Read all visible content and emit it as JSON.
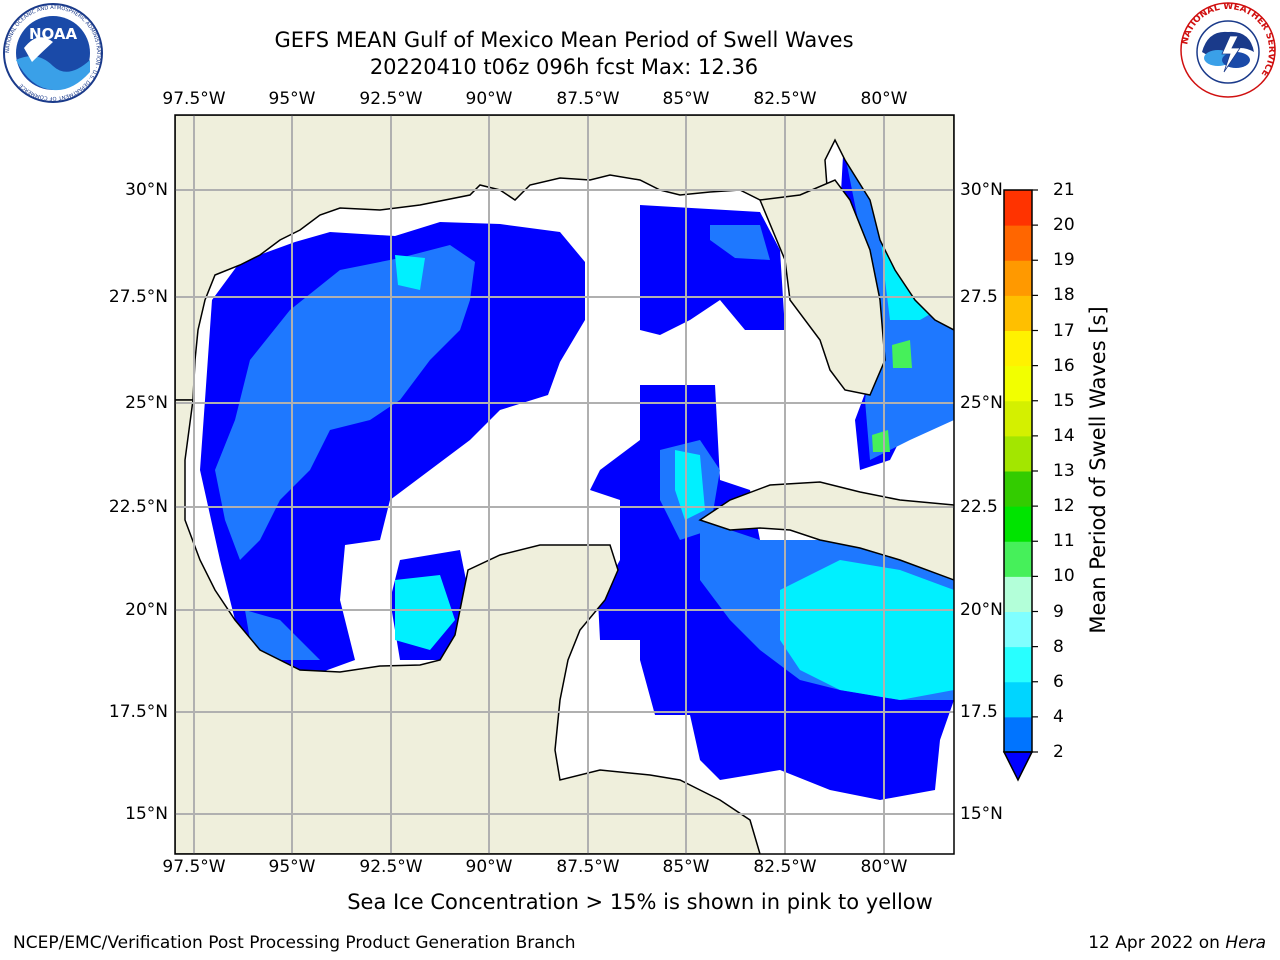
{
  "header": {
    "title": "GEFS MEAN Gulf of Mexico Mean Period of Swell Waves",
    "subtitle": "20220410 t06z 096h fcst   Max: 12.36"
  },
  "logos": {
    "noaa_text": "NOAA",
    "noaa_ring_text": "NATIONAL OCEANIC AND ATMOSPHERIC ADMINISTRATION · U.S. DEPARTMENT OF COMMERCE",
    "nws_ring_text": "NATIONAL WEATHER SERVICE"
  },
  "map": {
    "lon_ticks": [
      "97.5°W",
      "95°W",
      "92.5°W",
      "90°W",
      "87.5°W",
      "85°W",
      "82.5°W",
      "80°W"
    ],
    "lat_ticks_left": [
      "30°N",
      "27.5°N",
      "25°N",
      "22.5°N",
      "20°N",
      "17.5°N",
      "15°N"
    ],
    "lat_ticks_right": [
      "30°N",
      "27.5",
      "25°N",
      "22.5",
      "20°N",
      "17.5",
      "15°N"
    ],
    "extent": {
      "lon_min": -98.0,
      "lon_max": -78.3,
      "lat_min": 14.0,
      "lat_max": 31.7
    },
    "colors": {
      "land": "#efefdc",
      "ocean_low": "#0000ff",
      "ocean_mid": "#1e78ff",
      "ocean_high": "#00f0ff",
      "grid": "#b0b0b0"
    }
  },
  "colorbar": {
    "title": "Mean Period of Swell Waves [s]",
    "levels": [
      2,
      4,
      6,
      8,
      9,
      10,
      11,
      12,
      13,
      14,
      15,
      16,
      17,
      18,
      19,
      20,
      21
    ],
    "colors": [
      "#0074ff",
      "#00d5ff",
      "#28ffff",
      "#80ffff",
      "#b3ffd9",
      "#46f05a",
      "#00e400",
      "#33cc00",
      "#a3e600",
      "#d4f000",
      "#f2ff00",
      "#fff200",
      "#ffbf00",
      "#ff9900",
      "#ff6600",
      "#ff3300"
    ],
    "under_color": "#0000ff"
  },
  "note": "Sea Ice Concentration > 15% is shown in pink to yellow",
  "footer": {
    "left": "NCEP/EMC/Verification Post Processing Product Generation Branch",
    "right_date": "12 Apr 2022 on ",
    "right_host": "Hera"
  }
}
